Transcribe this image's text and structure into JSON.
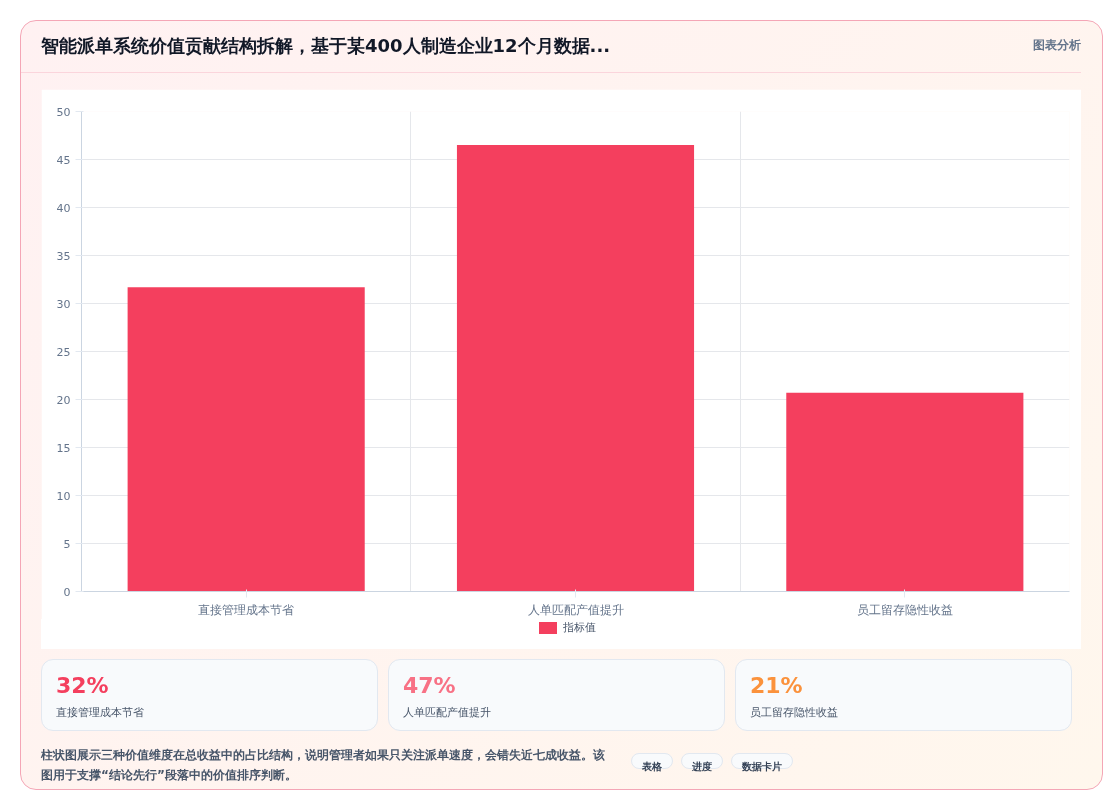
{
  "chart_data": {
    "type": "bar",
    "title": "智能派单系统价值贡献结构拆解，基于某400人制造企业12个月数据...",
    "categories": [
      "直接管理成本节省",
      "人单匹配产值提升",
      "员工留存隐性收益"
    ],
    "series": [
      {
        "name": "指标值",
        "color": "#f43f5e",
        "values": [
          31.7,
          46.5,
          20.7
        ]
      }
    ],
    "ylim": [
      0,
      50
    ],
    "yticks": [
      0,
      5,
      10,
      15,
      20,
      25,
      30,
      35,
      40,
      45,
      50
    ],
    "grid": true,
    "legend": "bottom",
    "annotations": [
      "图表分析",
      "32%",
      "直接管理成本节省",
      "47%",
      "人单匹配产值提升",
      "21%",
      "员工留存隐性收益",
      "柱状图展示三种价值维度在总收益中的占比结构，说明管理者如果只关注派单速度，会错失近七成收益。该图用于支撑“结论先行”段落中的价值排序判断。",
      "表格",
      "进度",
      "数据卡片"
    ]
  }
}
